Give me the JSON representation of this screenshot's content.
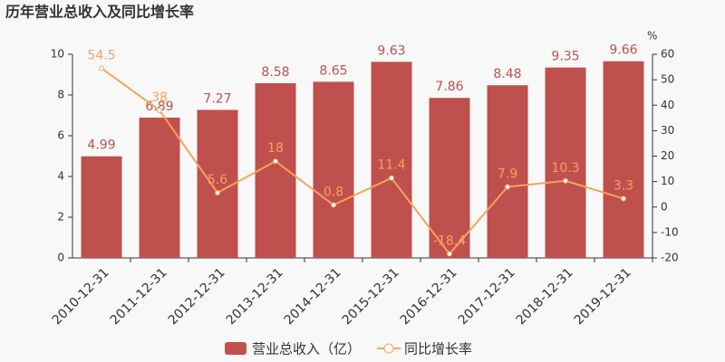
{
  "chart_data": {
    "type": "bar",
    "title": "历年营业总收入及同比增长率",
    "categories": [
      "2010-12-31",
      "2011-12-31",
      "2012-12-31",
      "2013-12-31",
      "2014-12-31",
      "2015-12-31",
      "2016-12-31",
      "2017-12-31",
      "2018-12-31",
      "2019-12-31"
    ],
    "series": [
      {
        "name": "营业总收入（亿）",
        "type": "bar",
        "color": "#c0504d",
        "values": [
          4.99,
          6.89,
          7.27,
          8.58,
          8.65,
          9.63,
          7.86,
          8.48,
          9.35,
          9.66
        ]
      },
      {
        "name": "同比增长率",
        "type": "line",
        "axis": "y2",
        "color": "#f5a35b",
        "values": [
          54.5,
          38,
          5.6,
          18,
          0.8,
          11.4,
          -18.4,
          7.9,
          10.3,
          3.3
        ]
      }
    ],
    "ylim": [
      0,
      10
    ],
    "yticks": [
      0,
      2,
      4,
      6,
      8,
      10
    ],
    "y2lim": [
      -20,
      60
    ],
    "y2ticks": [
      -20,
      -10,
      0,
      10,
      20,
      30,
      40,
      50,
      60
    ],
    "y2_label": "%"
  }
}
